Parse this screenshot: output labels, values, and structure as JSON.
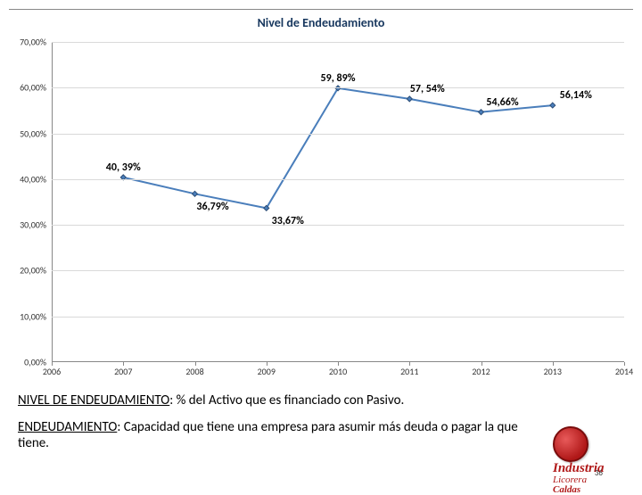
{
  "chart": {
    "type": "line",
    "title": "Nivel de Endeudamiento",
    "title_color": "#17375e",
    "title_fontsize": 14,
    "background_color": "#ffffff",
    "grid_color": "#d9d9d9",
    "axis_color": "#888888",
    "tick_label_fontsize": 10,
    "tick_label_color": "#333333",
    "y": {
      "min": 0,
      "max": 70,
      "step": 10,
      "tick_labels": [
        "0,00%",
        "10,00%",
        "20,00%",
        "30,00%",
        "40,00%",
        "50,00%",
        "60,00%",
        "70,00%"
      ]
    },
    "x": {
      "categories": [
        "2006",
        "2007",
        "2008",
        "2009",
        "2010",
        "2011",
        "2012",
        "2013",
        "2014"
      ]
    },
    "series": {
      "line_color": "#4a7ebb",
      "marker_color": "#4a7ebb",
      "marker_border": "#2c4d75",
      "line_width": 2,
      "marker_size": 6,
      "points": [
        {
          "xi": 1,
          "y": 40.39,
          "label": "40, 39%",
          "label_dy": -18,
          "label_dx": 0
        },
        {
          "xi": 2,
          "y": 36.79,
          "label": "36,79%",
          "label_dy": 8,
          "label_dx": 20
        },
        {
          "xi": 3,
          "y": 33.67,
          "label": "33,67%",
          "label_dy": 8,
          "label_dx": 24
        },
        {
          "xi": 4,
          "y": 59.89,
          "label": "59, 89%",
          "label_dy": -18,
          "label_dx": 0
        },
        {
          "xi": 5,
          "y": 57.54,
          "label": "57, 54%",
          "label_dy": -18,
          "label_dx": 20
        },
        {
          "xi": 6,
          "y": 54.66,
          "label": "54,66%",
          "label_dy": -18,
          "label_dx": 24
        },
        {
          "xi": 7,
          "y": 56.14,
          "label": "56,14%",
          "label_dy": -18,
          "label_dx": 26
        }
      ],
      "data_label_fontsize": 12,
      "data_label_color": "#000000"
    }
  },
  "definitions": {
    "d1_term": "NIVEL DE ENDEUDAMIENTO",
    "d1_body": ": % del Activo que es financiado con Pasivo.",
    "d2_term": "ENDEUDAMIENTO",
    "d2_body": ": Capacidad que tiene una empresa para asumir más deuda o pagar la que tiene.",
    "fontsize": 15
  },
  "logo": {
    "line1": "Industria",
    "line2": "Licorera",
    "line3": "Caldas",
    "badge_color": "#b01818"
  },
  "page_number": "36"
}
